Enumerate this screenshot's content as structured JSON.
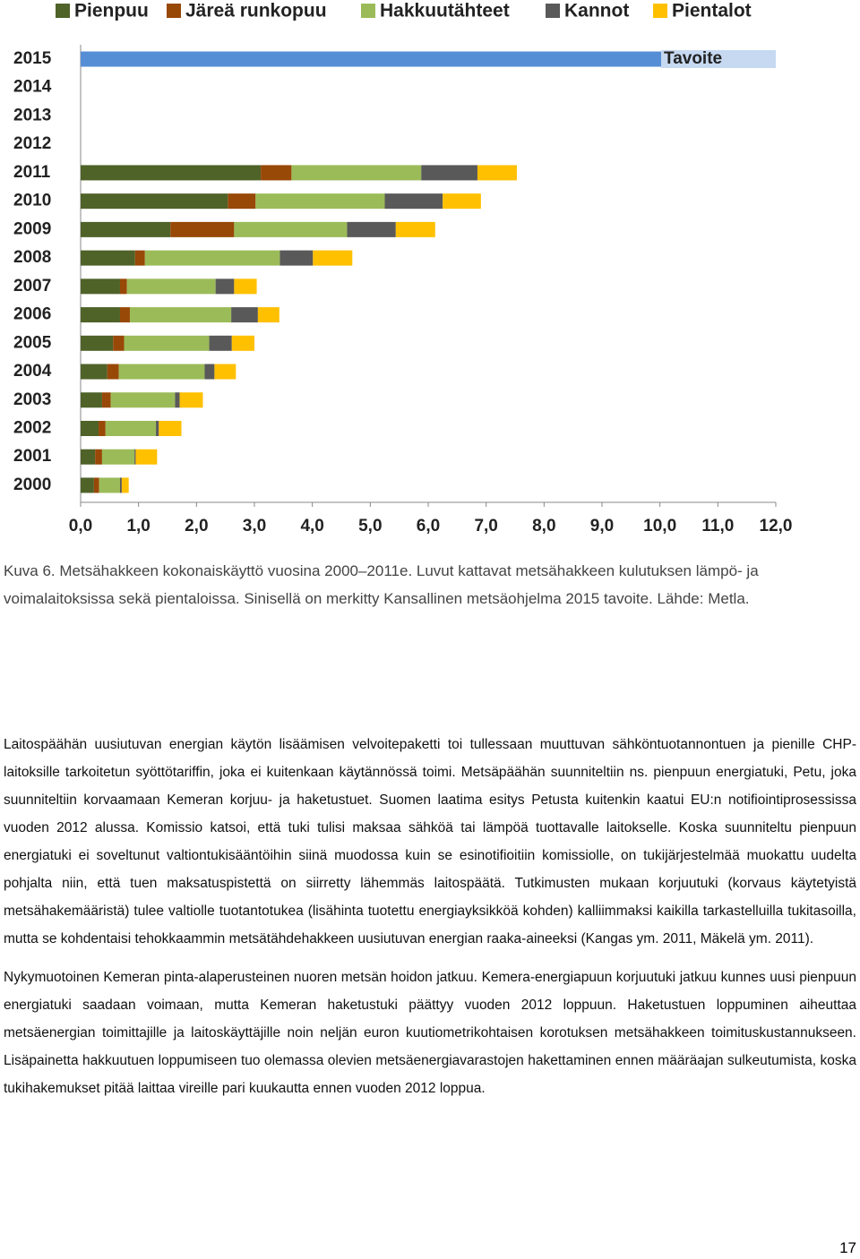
{
  "chart_data": {
    "type": "stacked-bar-horizontal",
    "categories": [
      "2015",
      "2014",
      "2013",
      "2012",
      "2011",
      "2010",
      "2009",
      "2008",
      "2007",
      "2006",
      "2005",
      "2004",
      "2003",
      "2002",
      "2001",
      "2000"
    ],
    "series": [
      {
        "name": "Pienpuu",
        "color": "#4f6228",
        "values": [
          null,
          null,
          null,
          null,
          3.11,
          2.54,
          1.55,
          0.94,
          0.68,
          0.68,
          0.56,
          0.46,
          0.37,
          0.31,
          0.25,
          0.23
        ]
      },
      {
        "name": "Järeä runkopuu",
        "color": "#984807",
        "values": [
          null,
          null,
          null,
          null,
          0.53,
          0.48,
          1.1,
          0.17,
          0.12,
          0.17,
          0.19,
          0.2,
          0.15,
          0.12,
          0.12,
          0.09
        ]
      },
      {
        "name": "Hakkuutähteet",
        "color": "#9bbb59",
        "values": [
          null,
          null,
          null,
          null,
          2.24,
          2.23,
          1.95,
          2.33,
          1.53,
          1.75,
          1.47,
          1.48,
          1.11,
          0.87,
          0.56,
          0.36
        ]
      },
      {
        "name": "Kannot",
        "color": "#595959",
        "values": [
          null,
          null,
          null,
          null,
          0.97,
          1.0,
          0.84,
          0.57,
          0.32,
          0.46,
          0.39,
          0.17,
          0.08,
          0.05,
          0.02,
          0.03
        ]
      },
      {
        "name": "Pientalot",
        "color": "#ffc000",
        "values": [
          null,
          null,
          null,
          null,
          0.68,
          0.66,
          0.68,
          0.68,
          0.39,
          0.37,
          0.39,
          0.37,
          0.4,
          0.39,
          0.37,
          0.12
        ]
      }
    ],
    "target": {
      "label": "Tavoite",
      "category": "2015",
      "value": 12,
      "color": "#558ed5"
    },
    "xlim": [
      0,
      12
    ],
    "xticks": [
      {
        "value": 0,
        "label": "0,0"
      },
      {
        "value": 1,
        "label": "1,0"
      },
      {
        "value": 2,
        "label": "2,0"
      },
      {
        "value": 3,
        "label": "3,0"
      },
      {
        "value": 4,
        "label": "4,0"
      },
      {
        "value": 5,
        "label": "5,0"
      },
      {
        "value": 6,
        "label": "6,0"
      },
      {
        "value": 7,
        "label": "7,0"
      },
      {
        "value": 8,
        "label": "8,0"
      },
      {
        "value": 9,
        "label": "9,0"
      },
      {
        "value": 10,
        "label": "10,0"
      },
      {
        "value": 11,
        "label": "11,0"
      },
      {
        "value": 12,
        "label": "12,0"
      }
    ],
    "legend": "top"
  },
  "caption": "Kuva 6. Metsähakkeen kokonaiskäyttö vuosina 2000–2011e. Luvut kattavat metsähakkeen kulutuksen lämpö- ja voimalaitoksissa sekä pientaloissa. Sinisellä on merkitty Kansallinen metsäohjelma 2015 tavoite. Lähde: Metla.",
  "paragraphs": [
    "Laitospäähän uusiutuvan energian käytön lisäämisen velvoitepaketti toi tullessaan muuttuvan sähköntuotannontuen ja pienille CHP-laitoksille tarkoitetun syöttötariffin, joka ei kuitenkaan käytännössä toimi. Metsäpäähän suunniteltiin ns. pienpuun energiatuki, Petu, joka suunniteltiin korvaamaan Kemeran korjuu- ja haketustuet. Suomen laatima esitys Petusta kuitenkin kaatui EU:n notifiointiprosessissa vuoden 2012 alussa. Komissio katsoi, että tuki tulisi maksaa sähköä tai lämpöä tuottavalle laitokselle. Koska suunniteltu pienpuun energiatuki ei soveltunut valtiontukisääntöihin siinä muodossa kuin se esinotifioitiin komissiolle, on tukijärjestelmää muokattu uudelta pohjalta niin, että tuen maksatuspistettä on siirretty lähemmäs laitospäätä. Tutkimusten mukaan korjuutuki (korvaus käytetyistä metsähakemääristä) tulee valtiolle tuotantotukea (lisähinta tuotettu energiayksikköä kohden) kalliimmaksi kaikilla tarkastelluilla tukitasoilla, mutta se kohdentaisi tehokkaammin metsätähdehakkeen uusiutuvan energian raaka-aineeksi (Kangas ym. 2011, Mäkelä ym. 2011).",
    "Nykymuotoinen Kemeran pinta-alaperusteinen nuoren metsän hoidon jatkuu. Kemera-energiapuun korjuutuki jatkuu kunnes uusi pienpuun energiatuki saadaan voimaan, mutta Kemeran haketustuki päättyy vuoden 2012 loppuun. Haketustuen loppuminen aiheuttaa metsäenergian toimittajille ja laitoskäyttäjille noin neljän euron kuutiometrikohtaisen korotuksen metsähakkeen toimituskustannukseen. Lisäpainetta hakkuutuen loppumiseen tuo olemassa olevien metsäenergiavarastojen hakettaminen ennen määräajan sulkeutumista, koska tukihakemukset pitää laittaa vireille pari kuukautta ennen vuoden 2012 loppua."
  ],
  "page_number": "17"
}
